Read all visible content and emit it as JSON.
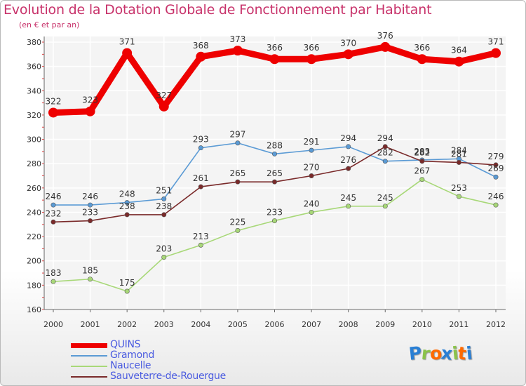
{
  "chart_data": {
    "type": "line",
    "title": "Evolution de la Dotation Globale de Fonctionnement par Habitant",
    "subtitle": "(en € et par an)",
    "xlabel": "",
    "ylabel": "",
    "x": [
      "2000",
      "2001",
      "2002",
      "2003",
      "2004",
      "2005",
      "2006",
      "2007",
      "2008",
      "2009",
      "2010",
      "2011",
      "2012"
    ],
    "ylim": [
      160,
      380
    ],
    "yticks": [
      "160",
      "180",
      "200",
      "220",
      "240",
      "260",
      "280",
      "300",
      "320",
      "340",
      "360",
      "380"
    ],
    "grid": true,
    "legend_position": "bottom-left",
    "series": [
      {
        "name": "QUINS",
        "color": "#ee0000",
        "values": [
          322,
          323,
          371,
          327,
          368,
          373,
          366,
          366,
          370,
          376,
          366,
          364,
          371
        ],
        "labels": [
          "322",
          "323",
          "371",
          "327",
          "368",
          "373",
          "366",
          "366",
          "370",
          "376",
          "366",
          "364",
          "371"
        ]
      },
      {
        "name": "Gramond",
        "color": "#5b9bd5",
        "values": [
          246,
          246,
          248,
          251,
          293,
          297,
          288,
          291,
          294,
          282,
          283,
          284,
          269
        ],
        "labels": [
          "246",
          "246",
          "248",
          "251",
          "293",
          "297",
          "288",
          "291",
          "294",
          "282",
          "283",
          "284",
          "269"
        ]
      },
      {
        "name": "Naucelle",
        "color": "#a8d878",
        "values": [
          183,
          185,
          175,
          203,
          213,
          225,
          233,
          240,
          245,
          245,
          267,
          253,
          246
        ],
        "labels": [
          "183",
          "185",
          "175",
          "203",
          "213",
          "225",
          "233",
          "240",
          "245",
          "245",
          "267",
          "253",
          "246"
        ]
      },
      {
        "name": "Sauveterre-de-Rouergue",
        "color": "#7a2a2a",
        "values": [
          232,
          233,
          238,
          238,
          261,
          265,
          265,
          270,
          276,
          294,
          282,
          281,
          279
        ],
        "labels": [
          "232",
          "233",
          "238",
          "238",
          "261",
          "265",
          "265",
          "270",
          "276",
          "294",
          "282",
          "281",
          "279"
        ]
      }
    ]
  },
  "logo": {
    "text": "Proxiti",
    "colors": [
      "#2a7fd4",
      "#8bc34a",
      "#ff6a00",
      "#2a7fd4",
      "#8bc34a",
      "#ff6a00",
      "#2a7fd4"
    ]
  }
}
